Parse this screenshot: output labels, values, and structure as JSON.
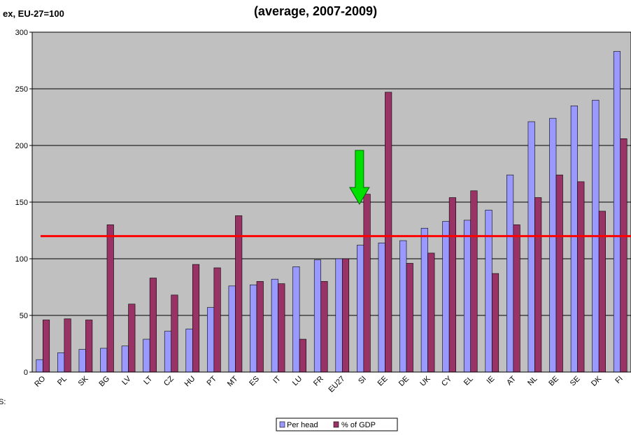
{
  "chart_data": {
    "type": "bar",
    "title": "(average, 2007-2009)",
    "subtitle": "ex, EU-27=100",
    "side_glyph": "S:",
    "ylim": [
      0,
      300
    ],
    "yticks": [
      0,
      50,
      100,
      150,
      200,
      250,
      300
    ],
    "grid": true,
    "legend_position": "bottom-center",
    "reference_line": {
      "value": 120,
      "color": "#ff0000"
    },
    "arrow_marker": {
      "category": "SI",
      "color": "#00e000"
    },
    "colors": {
      "plot_bg": "#c0c0c0",
      "series_per_head": "#9999ff",
      "series_gdp": "#993366"
    },
    "categories": [
      "RO",
      "PL",
      "SK",
      "BG",
      "LV",
      "LT",
      "CZ",
      "HU",
      "PT",
      "MT",
      "ES",
      "IT",
      "LU",
      "FR",
      "EU27",
      "SI",
      "EE",
      "DE",
      "UK",
      "CY",
      "EL",
      "IE",
      "AT",
      "NL",
      "BE",
      "SE",
      "DK",
      "FI"
    ],
    "series": [
      {
        "name": "Per head",
        "values": [
          11,
          17,
          20,
          21,
          23,
          29,
          36,
          38,
          57,
          76,
          77,
          82,
          93,
          99,
          100,
          112,
          114,
          116,
          127,
          133,
          134,
          143,
          174,
          221,
          224,
          235,
          240,
          283
        ]
      },
      {
        "name": "% of GDP",
        "values": [
          46,
          47,
          46,
          130,
          60,
          83,
          68,
          95,
          92,
          138,
          80,
          78,
          29,
          80,
          100,
          157,
          247,
          96,
          105,
          154,
          160,
          87,
          130,
          154,
          174,
          168,
          142,
          206
        ]
      }
    ]
  }
}
